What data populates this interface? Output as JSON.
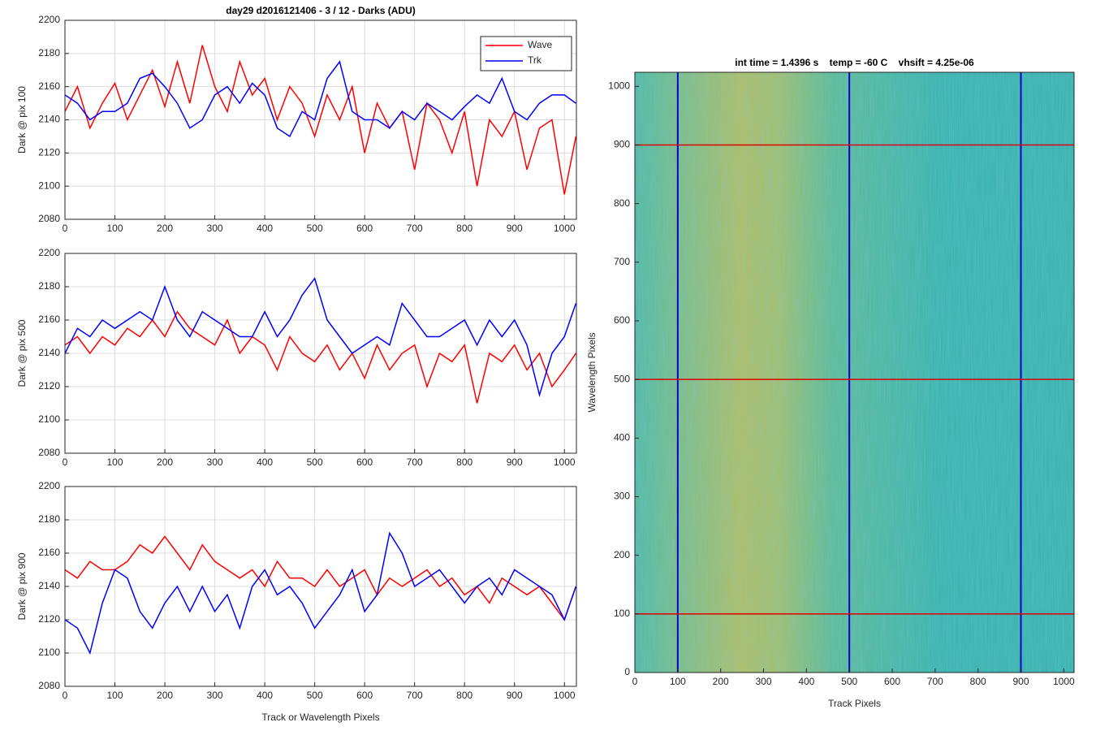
{
  "chart_data": [
    {
      "type": "line",
      "title": "day29 d2016121406 - 3 / 12 - Darks (ADU)",
      "ylabel": "Dark @ pix 100",
      "x": [
        0,
        25,
        50,
        75,
        100,
        125,
        150,
        175,
        200,
        225,
        250,
        275,
        300,
        325,
        350,
        375,
        400,
        425,
        450,
        475,
        500,
        525,
        550,
        575,
        600,
        625,
        650,
        675,
        700,
        725,
        750,
        775,
        800,
        825,
        850,
        875,
        900,
        925,
        950,
        975,
        1000,
        1023
      ],
      "series": [
        {
          "name": "Wave",
          "color": "#ff0000",
          "values": [
            2145,
            2160,
            2135,
            2150,
            2162,
            2140,
            2155,
            2170,
            2148,
            2175,
            2150,
            2185,
            2160,
            2145,
            2175,
            2155,
            2165,
            2140,
            2160,
            2150,
            2130,
            2155,
            2140,
            2160,
            2120,
            2150,
            2135,
            2145,
            2110,
            2150,
            2140,
            2120,
            2145,
            2100,
            2140,
            2130,
            2145,
            2110,
            2135,
            2140,
            2095,
            2130
          ]
        },
        {
          "name": "Trk",
          "color": "#0000ff",
          "values": [
            2155,
            2150,
            2140,
            2145,
            2145,
            2150,
            2165,
            2168,
            2160,
            2150,
            2135,
            2140,
            2155,
            2160,
            2150,
            2162,
            2155,
            2135,
            2130,
            2145,
            2140,
            2165,
            2175,
            2145,
            2140,
            2140,
            2135,
            2145,
            2140,
            2150,
            2145,
            2140,
            2148,
            2155,
            2150,
            2165,
            2145,
            2140,
            2150,
            2155,
            2155,
            2150
          ]
        }
      ],
      "xlim": [
        0,
        1024
      ],
      "xticks": [
        0,
        100,
        200,
        300,
        400,
        500,
        600,
        700,
        800,
        900,
        1000
      ],
      "ylim": [
        2080,
        2200
      ],
      "yticks": [
        2080,
        2100,
        2120,
        2140,
        2160,
        2180,
        2200
      ],
      "grid": true,
      "legend": "northeast"
    },
    {
      "type": "line",
      "ylabel": "Dark @ pix 500",
      "x": [
        0,
        25,
        50,
        75,
        100,
        125,
        150,
        175,
        200,
        225,
        250,
        275,
        300,
        325,
        350,
        375,
        400,
        425,
        450,
        475,
        500,
        525,
        550,
        575,
        600,
        625,
        650,
        675,
        700,
        725,
        750,
        775,
        800,
        825,
        850,
        875,
        900,
        925,
        950,
        975,
        1000,
        1023
      ],
      "series": [
        {
          "name": "Wave",
          "color": "#ff0000",
          "values": [
            2145,
            2150,
            2140,
            2150,
            2145,
            2155,
            2150,
            2160,
            2150,
            2165,
            2155,
            2150,
            2145,
            2160,
            2140,
            2150,
            2145,
            2130,
            2150,
            2140,
            2135,
            2145,
            2130,
            2140,
            2125,
            2145,
            2130,
            2140,
            2145,
            2120,
            2140,
            2135,
            2145,
            2110,
            2140,
            2135,
            2145,
            2130,
            2140,
            2120,
            2130,
            2140
          ]
        },
        {
          "name": "Trk",
          "color": "#0000ff",
          "values": [
            2140,
            2155,
            2150,
            2160,
            2155,
            2160,
            2165,
            2160,
            2180,
            2160,
            2150,
            2165,
            2160,
            2155,
            2150,
            2150,
            2165,
            2150,
            2160,
            2175,
            2185,
            2160,
            2150,
            2140,
            2145,
            2150,
            2145,
            2170,
            2160,
            2150,
            2150,
            2155,
            2160,
            2145,
            2160,
            2150,
            2160,
            2145,
            2115,
            2140,
            2150,
            2170
          ]
        }
      ],
      "xlim": [
        0,
        1024
      ],
      "xticks": [
        0,
        100,
        200,
        300,
        400,
        500,
        600,
        700,
        800,
        900,
        1000
      ],
      "ylim": [
        2080,
        2200
      ],
      "yticks": [
        2080,
        2100,
        2120,
        2140,
        2160,
        2180,
        2200
      ],
      "grid": true
    },
    {
      "type": "line",
      "ylabel": "Dark @ pix 900",
      "xlabel": "Track or Wavelength Pixels",
      "x": [
        0,
        25,
        50,
        75,
        100,
        125,
        150,
        175,
        200,
        225,
        250,
        275,
        300,
        325,
        350,
        375,
        400,
        425,
        450,
        475,
        500,
        525,
        550,
        575,
        600,
        625,
        650,
        675,
        700,
        725,
        750,
        775,
        800,
        825,
        850,
        875,
        900,
        925,
        950,
        975,
        1000,
        1023
      ],
      "series": [
        {
          "name": "Wave",
          "color": "#ff0000",
          "values": [
            2150,
            2145,
            2155,
            2150,
            2150,
            2155,
            2165,
            2160,
            2170,
            2160,
            2150,
            2165,
            2155,
            2150,
            2145,
            2150,
            2140,
            2155,
            2145,
            2145,
            2140,
            2150,
            2140,
            2145,
            2150,
            2135,
            2145,
            2140,
            2145,
            2150,
            2140,
            2145,
            2135,
            2140,
            2130,
            2145,
            2140,
            2135,
            2140,
            2130,
            2120,
            2140
          ]
        },
        {
          "name": "Trk",
          "color": "#0000ff",
          "values": [
            2120,
            2115,
            2100,
            2130,
            2150,
            2145,
            2125,
            2115,
            2130,
            2140,
            2125,
            2140,
            2125,
            2135,
            2115,
            2140,
            2150,
            2135,
            2140,
            2130,
            2115,
            2125,
            2135,
            2150,
            2125,
            2135,
            2172,
            2160,
            2140,
            2145,
            2150,
            2140,
            2130,
            2140,
            2145,
            2135,
            2150,
            2145,
            2140,
            2135,
            2120,
            2140
          ]
        }
      ],
      "xlim": [
        0,
        1024
      ],
      "xticks": [
        0,
        100,
        200,
        300,
        400,
        500,
        600,
        700,
        800,
        900,
        1000
      ],
      "ylim": [
        2080,
        2200
      ],
      "yticks": [
        2080,
        2100,
        2120,
        2140,
        2160,
        2180,
        2200
      ],
      "grid": true
    },
    {
      "type": "image",
      "title": "int time = 1.4396 s    temp = -60 C    vhsift = 4.25e-06",
      "xlabel": "Track Pixels",
      "ylabel": "Wavelength Pixels",
      "xlim": [
        0,
        1024
      ],
      "xticks": [
        0,
        100,
        200,
        300,
        400,
        500,
        600,
        700,
        800,
        900,
        1000
      ],
      "ylim": [
        0,
        1024
      ],
      "yticks": [
        0,
        100,
        200,
        300,
        400,
        500,
        600,
        700,
        800,
        900,
        1000
      ],
      "vlines": [
        100,
        500,
        900
      ],
      "vline_color": "#0000c8",
      "hlines": [
        100,
        500,
        900
      ],
      "hline_color": "#e00000"
    }
  ]
}
